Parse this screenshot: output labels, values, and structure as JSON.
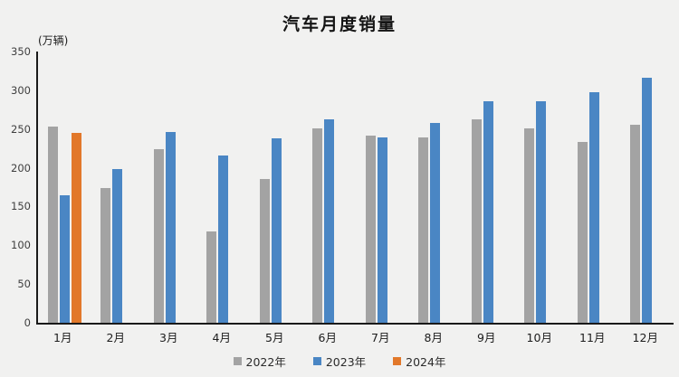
{
  "chart_data": {
    "type": "bar",
    "title": "汽车月度销量",
    "unit_label": "(万辆)",
    "categories": [
      "1月",
      "2月",
      "3月",
      "4月",
      "5月",
      "6月",
      "7月",
      "8月",
      "9月",
      "10月",
      "11月",
      "12月"
    ],
    "series": [
      {
        "name": "2022年",
        "color": "#a3a3a3",
        "values": [
          253,
          174,
          224,
          118,
          186,
          251,
          242,
          239,
          262,
          251,
          233,
          256
        ]
      },
      {
        "name": "2023年",
        "color": "#4a86c4",
        "values": [
          165,
          198,
          246,
          216,
          238,
          262,
          239,
          258,
          286,
          286,
          297,
          316
        ]
      },
      {
        "name": "2024年",
        "color": "#e2782a",
        "values": [
          245,
          null,
          null,
          null,
          null,
          null,
          null,
          null,
          null,
          null,
          null,
          null
        ]
      }
    ],
    "ylim": [
      0,
      350
    ],
    "yticks": [
      350,
      300,
      250,
      200,
      150,
      100,
      50,
      0
    ],
    "grid": false,
    "legend_position": "bottom",
    "background_color": "#f1f1f0",
    "axis_color": "#1a1a1a"
  }
}
